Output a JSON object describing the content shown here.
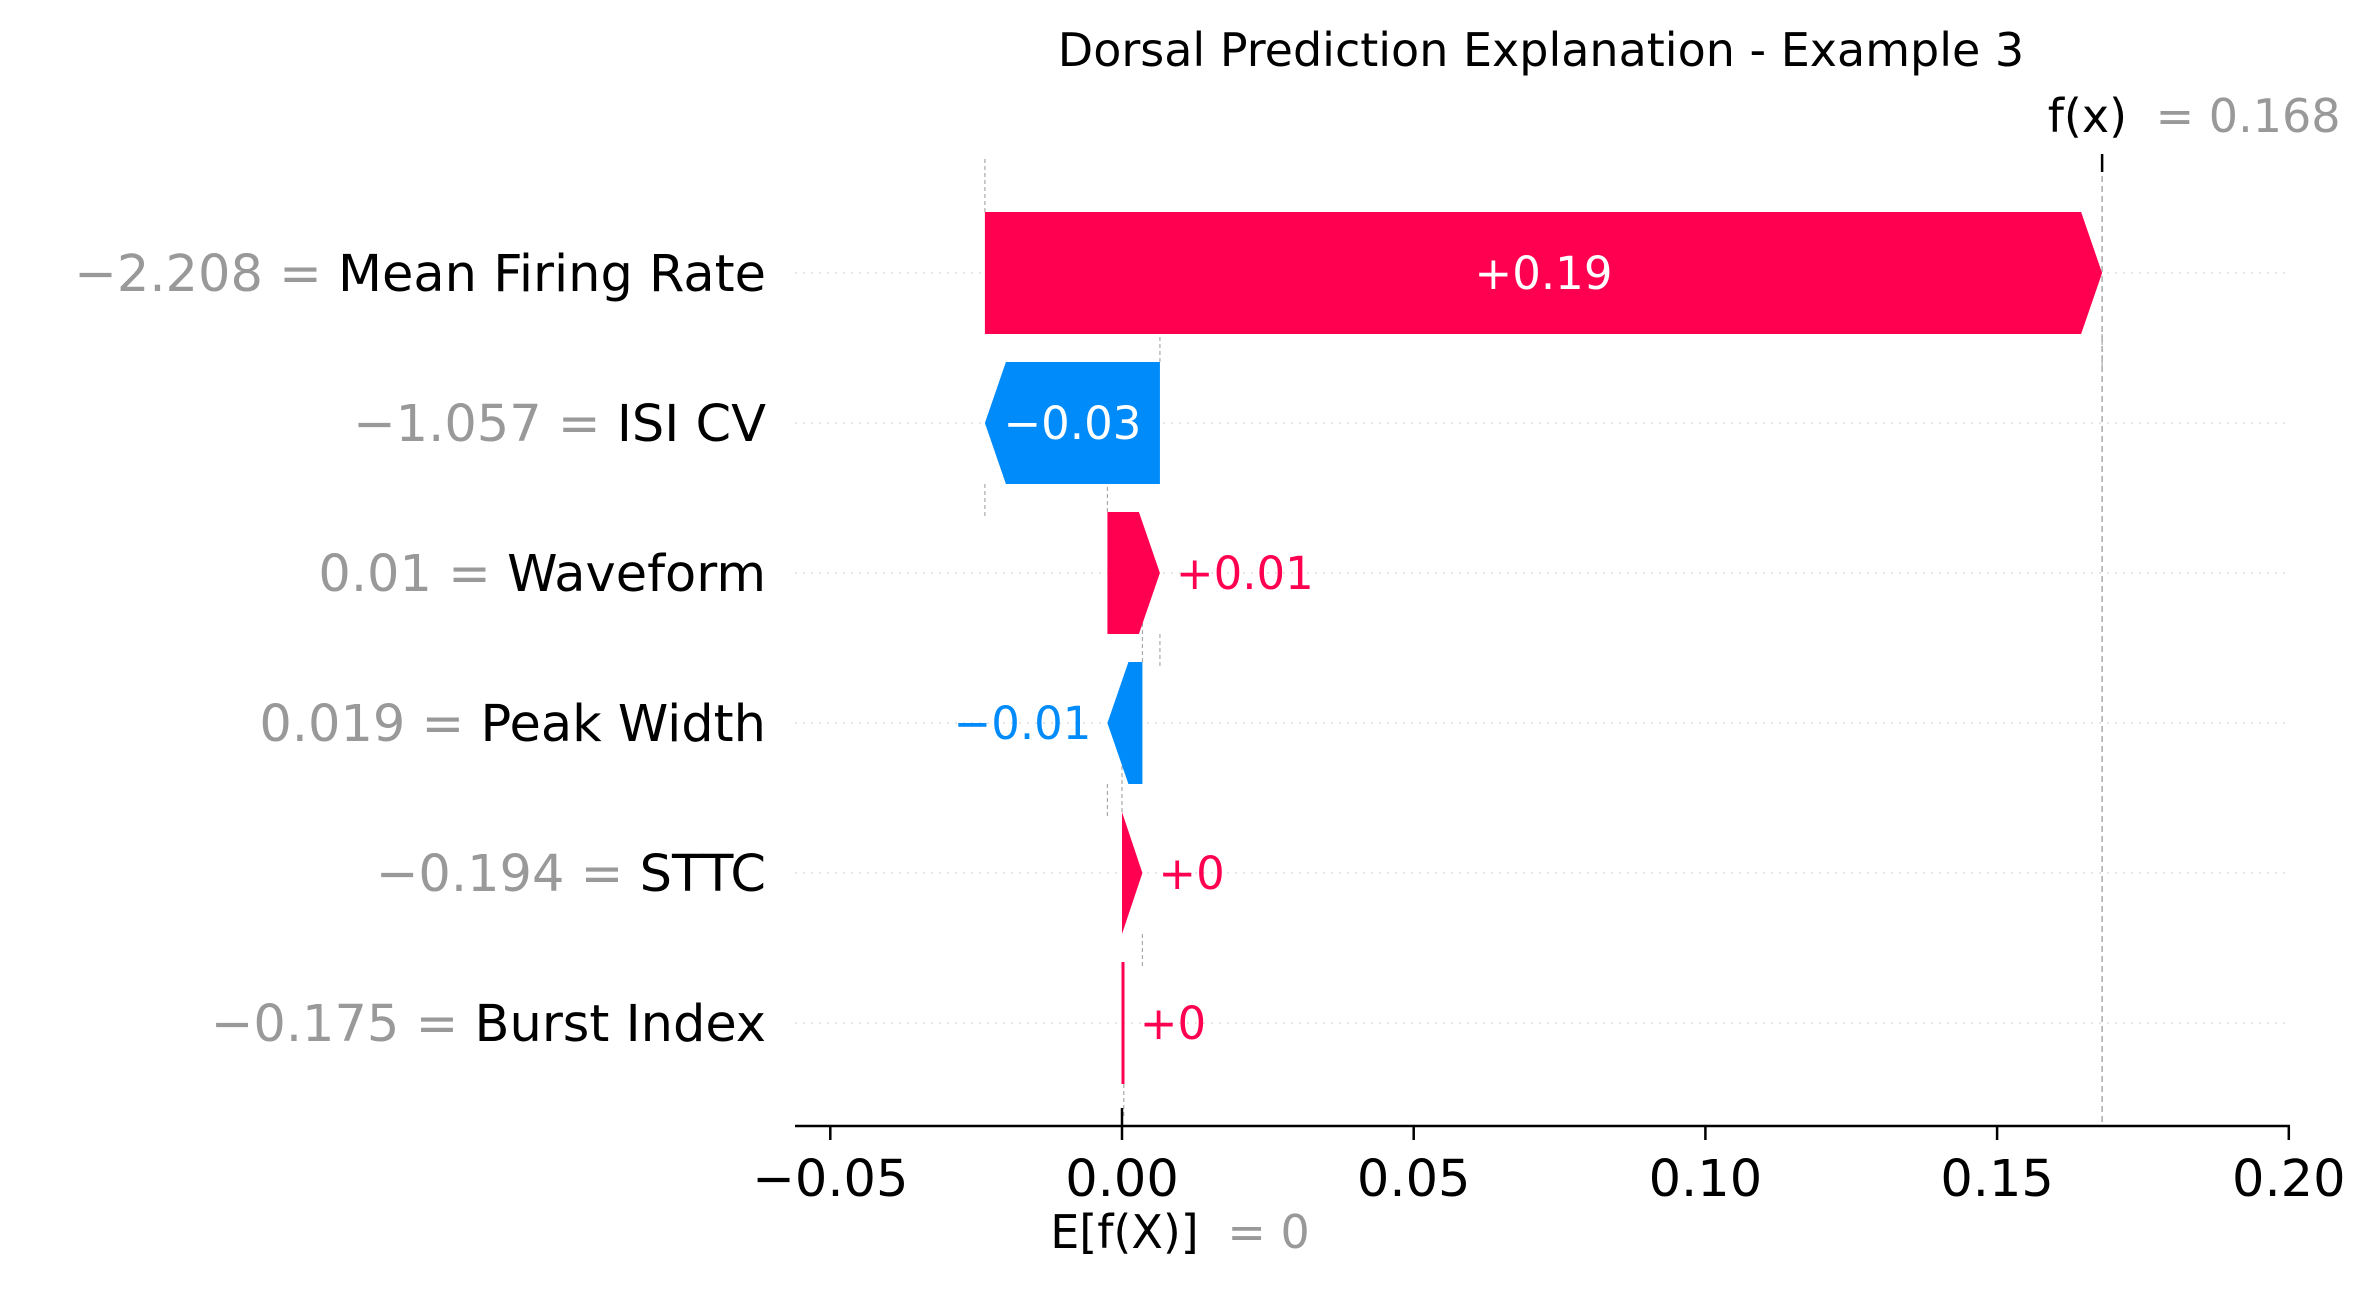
{
  "chart_data": {
    "type": "waterfall",
    "title": "Dorsal Prediction Explanation - Example 3",
    "base_value": {
      "expr": "E[f(X)]",
      "value_text": "= 0",
      "value": 0
    },
    "output_value": {
      "expr": "f(x)",
      "value_text": "= 0.168",
      "value": 0.168
    },
    "xlim": [
      -0.056,
      0.2
    ],
    "x_ticks": [
      {
        "value": -0.05,
        "label": "−0.05"
      },
      {
        "value": 0.0,
        "label": "0.00"
      },
      {
        "value": 0.05,
        "label": "0.05"
      },
      {
        "value": 0.1,
        "label": "0.10"
      },
      {
        "value": 0.15,
        "label": "0.15"
      },
      {
        "value": 0.2,
        "label": "0.20"
      }
    ],
    "colors": {
      "positive": "#ff0051",
      "negative": "#008bfb",
      "muted": "#999999"
    },
    "features": [
      {
        "feature_value": "−2.208 =",
        "name": "Mean Firing Rate",
        "start": -0.0235,
        "end": 0.168,
        "label": "+0.19"
      },
      {
        "feature_value": "−1.057 =",
        "name": "ISI CV",
        "start": 0.0065,
        "end": -0.0235,
        "label": "−0.03"
      },
      {
        "feature_value": "0.01 =",
        "name": "Waveform",
        "start": -0.0025,
        "end": 0.0065,
        "label": "+0.01"
      },
      {
        "feature_value": "0.019 =",
        "name": "Peak Width",
        "start": 0.0035,
        "end": -0.0025,
        "label": "−0.01"
      },
      {
        "feature_value": "−0.194 =",
        "name": "STTC",
        "start": 0.0,
        "end": 0.0035,
        "label": "+0"
      },
      {
        "feature_value": "−0.175 =",
        "name": "Burst Index",
        "start": 0.0,
        "end": 0.0003,
        "label": "+0"
      }
    ]
  }
}
